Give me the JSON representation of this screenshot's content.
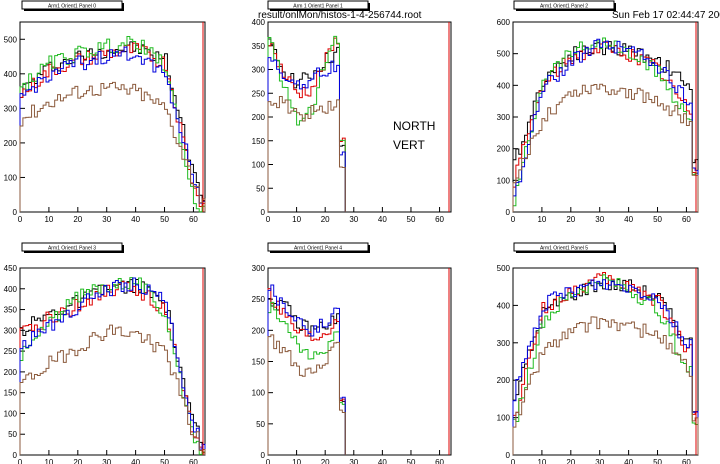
{
  "header": {
    "file_label": "result/onlMon/histos-1-4-256744.root",
    "date_label": "Sun Feb 17 02:44:47 2008"
  },
  "overlay": {
    "line1": "NORTH",
    "line2": "VERT"
  },
  "colors": {
    "black": "#000000",
    "red": "#dd0000",
    "green": "#22bb22",
    "blue": "#0000dd",
    "brown": "#8b5a3c",
    "axis": "#000000",
    "tab_fill": "#ffffff"
  },
  "chart_data": [
    {
      "type": "line",
      "title": "Arm1 Orient1 Panel 0",
      "x": [
        0,
        10,
        20,
        30,
        40,
        50,
        60
      ],
      "xlim": [
        0,
        64
      ],
      "ylim": [
        0,
        550
      ],
      "yticks": [
        0,
        100,
        200,
        300,
        400,
        500
      ],
      "xticks": [
        0,
        10,
        20,
        30,
        40,
        50,
        60
      ],
      "series": [
        {
          "color": "black",
          "values": [
            350,
            420,
            450,
            470,
            475,
            440,
            100
          ]
        },
        {
          "color": "red",
          "values": [
            340,
            410,
            440,
            460,
            470,
            430,
            60
          ]
        },
        {
          "color": "green",
          "values": [
            360,
            430,
            460,
            480,
            490,
            420,
            20
          ]
        },
        {
          "color": "blue",
          "values": [
            330,
            400,
            430,
            450,
            460,
            400,
            80
          ]
        },
        {
          "color": "brown",
          "values": [
            270,
            320,
            350,
            360,
            350,
            300,
            80
          ]
        }
      ]
    },
    {
      "type": "line",
      "title": "Arm 1 Orient1 Panel 1",
      "x": [
        0,
        5,
        10,
        15,
        20,
        25
      ],
      "xlim": [
        0,
        64
      ],
      "ylim": [
        0,
        400
      ],
      "yticks": [
        0,
        50,
        100,
        150,
        200,
        250,
        300,
        350,
        400
      ],
      "xticks": [
        0,
        10,
        20,
        30,
        40,
        50,
        60
      ],
      "series": [
        {
          "color": "black",
          "values": [
            350,
            300,
            270,
            290,
            320,
            340
          ]
        },
        {
          "color": "red",
          "values": [
            360,
            290,
            250,
            260,
            320,
            380
          ]
        },
        {
          "color": "green",
          "values": [
            370,
            270,
            180,
            220,
            330,
            370
          ]
        },
        {
          "color": "blue",
          "values": [
            320,
            290,
            270,
            280,
            300,
            310
          ]
        },
        {
          "color": "brown",
          "values": [
            220,
            240,
            200,
            210,
            220,
            230
          ]
        }
      ]
    },
    {
      "type": "line",
      "title": "Arm1 Orient1 Panel 2",
      "x": [
        0,
        10,
        20,
        30,
        40,
        50,
        60
      ],
      "xlim": [
        0,
        64
      ],
      "ylim": [
        0,
        600
      ],
      "yticks": [
        0,
        100,
        200,
        300,
        400,
        500,
        600
      ],
      "xticks": [
        0,
        10,
        20,
        30,
        40,
        50,
        60
      ],
      "series": [
        {
          "color": "black",
          "values": [
            150,
            420,
            500,
            520,
            510,
            480,
            400
          ]
        },
        {
          "color": "red",
          "values": [
            100,
            400,
            490,
            520,
            500,
            450,
            320
          ]
        },
        {
          "color": "green",
          "values": [
            30,
            430,
            510,
            540,
            500,
            440,
            300
          ]
        },
        {
          "color": "blue",
          "values": [
            50,
            390,
            480,
            530,
            520,
            460,
            350
          ]
        },
        {
          "color": "brown",
          "values": [
            80,
            300,
            380,
            400,
            380,
            350,
            290
          ]
        }
      ]
    },
    {
      "type": "line",
      "title": "Arm1 Orient1 Panel 3",
      "x": [
        0,
        10,
        20,
        30,
        40,
        50,
        60
      ],
      "xlim": [
        0,
        64
      ],
      "ylim": [
        0,
        450
      ],
      "yticks": [
        0,
        50,
        100,
        150,
        200,
        250,
        300,
        350,
        400,
        450
      ],
      "xticks": [
        0,
        10,
        20,
        30,
        40,
        50,
        60
      ],
      "series": [
        {
          "color": "black",
          "values": [
            300,
            340,
            370,
            400,
            410,
            360,
            60
          ]
        },
        {
          "color": "red",
          "values": [
            290,
            330,
            360,
            400,
            400,
            350,
            30
          ]
        },
        {
          "color": "green",
          "values": [
            240,
            320,
            380,
            410,
            420,
            340,
            20
          ]
        },
        {
          "color": "blue",
          "values": [
            260,
            310,
            360,
            400,
            410,
            370,
            50
          ]
        },
        {
          "color": "brown",
          "values": [
            170,
            220,
            260,
            300,
            290,
            250,
            40
          ]
        }
      ]
    },
    {
      "type": "line",
      "title": "Arm1 Orient1 Panel 4",
      "x": [
        0,
        5,
        10,
        15,
        20,
        25
      ],
      "xlim": [
        0,
        64
      ],
      "ylim": [
        0,
        300
      ],
      "yticks": [
        0,
        50,
        100,
        150,
        200,
        250,
        300
      ],
      "xticks": [
        0,
        10,
        20,
        30,
        40,
        50,
        60
      ],
      "series": [
        {
          "color": "black",
          "values": [
            250,
            240,
            210,
            200,
            210,
            220
          ]
        },
        {
          "color": "red",
          "values": [
            260,
            230,
            200,
            190,
            200,
            230
          ]
        },
        {
          "color": "green",
          "values": [
            240,
            210,
            180,
            150,
            170,
            210
          ]
        },
        {
          "color": "blue",
          "values": [
            270,
            240,
            220,
            200,
            210,
            240
          ]
        },
        {
          "color": "brown",
          "values": [
            190,
            170,
            140,
            130,
            150,
            180
          ]
        }
      ]
    },
    {
      "type": "line",
      "title": "Arm1 Orient1 Panel 5",
      "x": [
        0,
        10,
        20,
        30,
        40,
        50,
        60
      ],
      "xlim": [
        0,
        64
      ],
      "ylim": [
        0,
        500
      ],
      "yticks": [
        0,
        100,
        200,
        300,
        400,
        500
      ],
      "xticks": [
        0,
        10,
        20,
        30,
        40,
        50,
        60
      ],
      "series": [
        {
          "color": "black",
          "values": [
            150,
            380,
            430,
            460,
            450,
            420,
            300
          ]
        },
        {
          "color": "red",
          "values": [
            100,
            390,
            440,
            470,
            450,
            410,
            280
          ]
        },
        {
          "color": "green",
          "values": [
            80,
            360,
            430,
            470,
            440,
            390,
            220
          ]
        },
        {
          "color": "blue",
          "values": [
            160,
            400,
            440,
            460,
            450,
            420,
            290
          ]
        },
        {
          "color": "brown",
          "values": [
            80,
            280,
            330,
            360,
            340,
            320,
            230
          ]
        }
      ]
    }
  ]
}
